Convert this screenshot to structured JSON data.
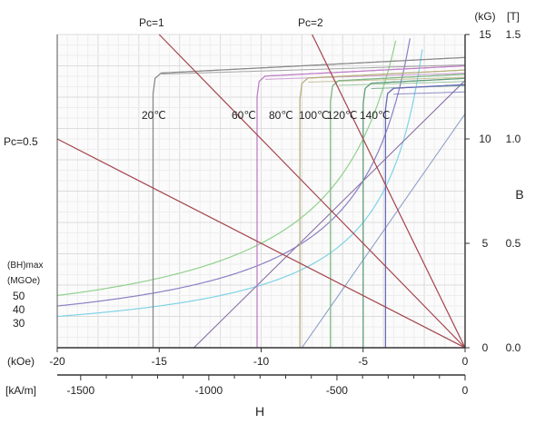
{
  "chart_data": {
    "type": "line",
    "title": "",
    "x_axis_primary": {
      "unit_label": "(kOe)",
      "ticks": [
        "-20",
        "-15",
        "-10",
        "-5",
        "0"
      ],
      "range": [
        -20,
        0
      ]
    },
    "x_axis_secondary": {
      "unit_label": "[kA/m]",
      "ticks": [
        "-1500",
        "-1000",
        "-500",
        "0"
      ],
      "range": [
        -1591.5,
        0
      ]
    },
    "xlabel": "H",
    "y_axis_primary": {
      "unit_label": "(kG)",
      "ticks": [
        "0",
        "5",
        "10",
        "15"
      ],
      "range": [
        0,
        15
      ]
    },
    "y_axis_secondary": {
      "unit_label": "[T]",
      "ticks": [
        "0.0",
        "0.5",
        "1.0",
        "1.5"
      ],
      "range": [
        0,
        1.5
      ]
    },
    "ylabel": "B",
    "grid": true,
    "load_lines": [
      {
        "label": "Pc=0.5",
        "slope_B_per_H": -0.5,
        "color": "#a3444c"
      },
      {
        "label": "Pc=1",
        "slope_B_per_H": -1.0,
        "color": "#a3444c"
      },
      {
        "label": "Pc=2",
        "slope_B_per_H": -2.0,
        "color": "#a3444c"
      }
    ],
    "energy_product_header": [
      "(BH)max",
      "(MGOe)"
    ],
    "energy_product_curves": [
      {
        "label": "50",
        "BH": 50,
        "color": "#8fd18b"
      },
      {
        "label": "40",
        "BH": 40,
        "color": "#8a7fc4"
      },
      {
        "label": "30",
        "BH": 30,
        "color": "#7fd3e6"
      }
    ],
    "series": [
      {
        "name": "20℃",
        "color": "#8a8a8a",
        "Br": 13.9,
        "recoil_slope": 0.05,
        "Hcj": -15.3
      },
      {
        "name": "60℃",
        "color": "#c07fc7",
        "Br": 13.5,
        "recoil_slope": 0.05,
        "Hcj": -10.2
      },
      {
        "name": "80℃",
        "color": "#b7b07c",
        "Br": 13.3,
        "recoil_slope": 0.05,
        "Hcj": -8.1
      },
      {
        "name": "100℃",
        "color": "#7fb685",
        "Br": 13.1,
        "recoil_slope": 0.05,
        "Hcj": -6.6
      },
      {
        "name": "120℃",
        "color": "#5f9e7a",
        "Br": 12.9,
        "recoil_slope": 0.05,
        "Hcj": -5.0
      },
      {
        "name": "140℃",
        "color": "#6a6ab8",
        "Br": 12.6,
        "recoil_slope": 0.05,
        "Hcj": -3.9
      }
    ],
    "extra_lines": [
      {
        "color": "#8a6fa8",
        "points": [
          [
            -13.3,
            0
          ],
          [
            0,
            12.8
          ]
        ]
      },
      {
        "color": "#8da1c9",
        "points": [
          [
            -8.0,
            0
          ],
          [
            0,
            11.2
          ]
        ]
      }
    ]
  }
}
